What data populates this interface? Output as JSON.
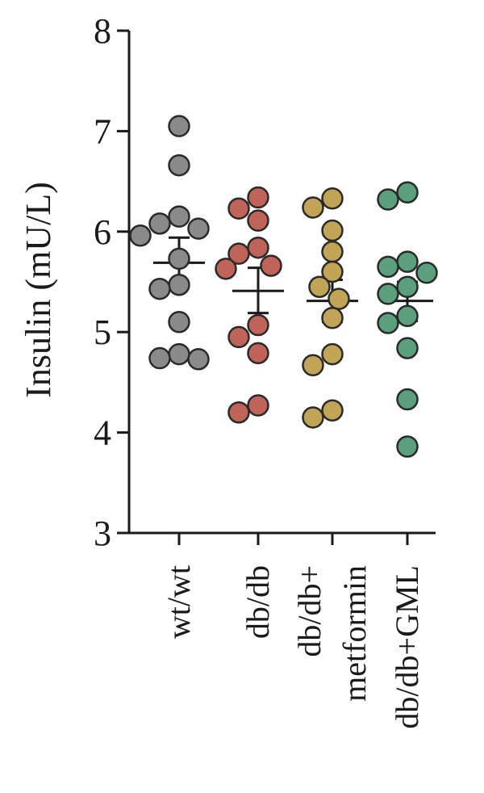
{
  "chart_data": {
    "type": "scatter",
    "title": "",
    "xlabel": "",
    "ylabel": "Insulin (mU/L)",
    "ylim": [
      3,
      8
    ],
    "yticks": [
      3,
      4,
      5,
      6,
      7,
      8
    ],
    "grid": false,
    "legend": "none",
    "categories": [
      {
        "label_lines": [
          "wt/wt"
        ]
      },
      {
        "label_lines": [
          "db/db"
        ]
      },
      {
        "label_lines": [
          "db/db+",
          "metformin"
        ]
      },
      {
        "label_lines": [
          "db/db+GML"
        ]
      }
    ],
    "series": [
      {
        "color": "#8a8a8a",
        "values": [
          7.05,
          6.66,
          6.15,
          6.08,
          6.03,
          5.96,
          5.73,
          5.47,
          5.43,
          5.1,
          4.78,
          4.74,
          4.73
        ],
        "mean": 5.69,
        "sem_low": 5.44,
        "sem_high": 5.94
      },
      {
        "color": "#c0645a",
        "values": [
          6.34,
          6.23,
          6.11,
          5.84,
          5.78,
          5.66,
          5.63,
          5.07,
          4.95,
          4.79,
          4.27,
          4.2
        ],
        "mean": 5.41,
        "sem_low": 5.19,
        "sem_high": 5.64
      },
      {
        "color": "#c2a456",
        "values": [
          6.33,
          6.24,
          6.01,
          5.8,
          5.6,
          5.45,
          5.33,
          5.14,
          4.78,
          4.67,
          4.22,
          4.15
        ],
        "mean": 5.31,
        "sem_low": 5.1,
        "sem_high": 5.52
      },
      {
        "color": "#5aa07c",
        "values": [
          6.39,
          6.32,
          5.7,
          5.65,
          5.59,
          5.45,
          5.38,
          5.16,
          5.09,
          4.84,
          4.33,
          3.86
        ],
        "mean": 5.31,
        "sem_low": 5.11,
        "sem_high": 5.5
      }
    ]
  }
}
